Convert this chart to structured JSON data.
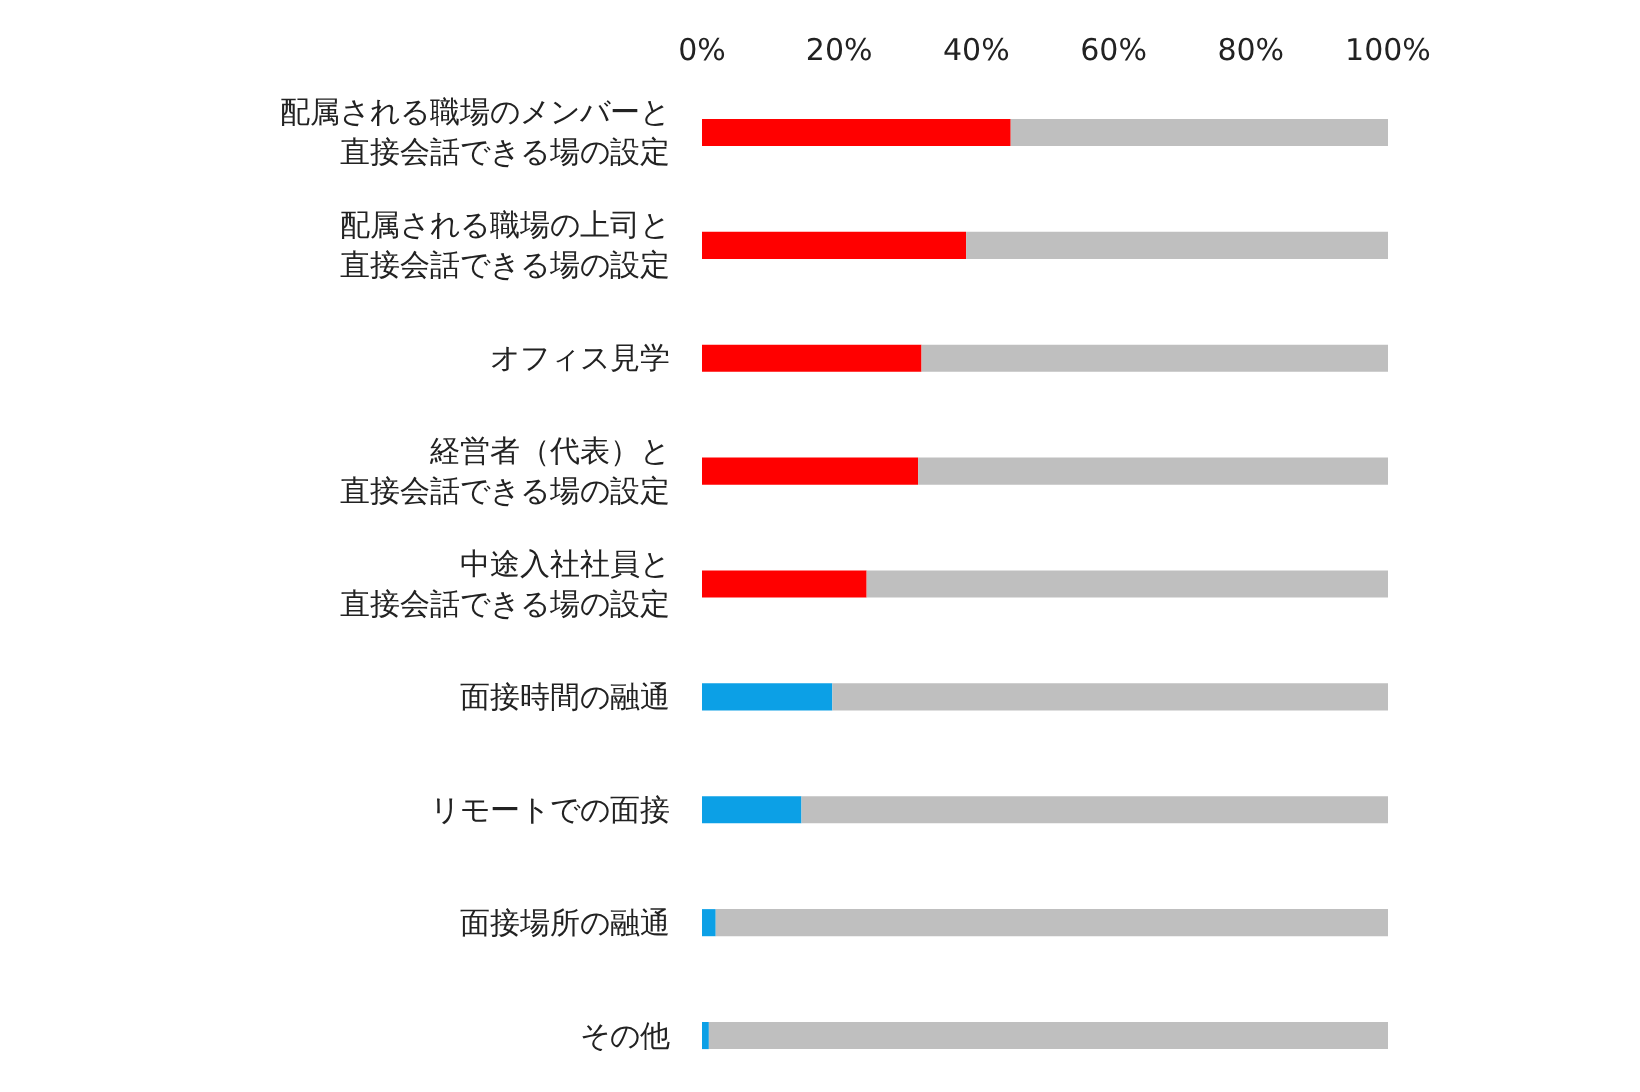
{
  "chart_data": {
    "type": "bar",
    "orientation": "horizontal",
    "stacked": true,
    "categories": [
      "配属される職場のメンバーと直接会話できる場の設定",
      "配属される職場の上司と直接会話できる場の設定",
      "オフィス見学",
      "経営者（代表）と直接会話できる場の設定",
      "中途入社社員と直接会話できる場の設定",
      "面接時間の融通",
      "リモートでの面接",
      "面接場所の融通",
      "その他"
    ],
    "series": [
      {
        "colors": [
          "#ff0000",
          "#ff0000",
          "#ff0000",
          "#ff0000",
          "#ff0000",
          "#0ca0e6",
          "#0ca0e6",
          "#0ca0e6",
          "#0ca0e6"
        ],
        "values": [
          45,
          38.5,
          32,
          31.5,
          24,
          19,
          14.5,
          2,
          1
        ]
      },
      {
        "color": "#bfbfbf",
        "values": [
          55,
          61.5,
          68,
          68.5,
          76,
          81,
          85.5,
          98,
          99
        ]
      }
    ],
    "xlim": [
      0,
      100
    ],
    "xticks": [
      {
        "value": 0,
        "label": "0%"
      },
      {
        "value": 20,
        "label": "20%"
      },
      {
        "value": 40,
        "label": "40%"
      },
      {
        "value": 60,
        "label": "60%"
      },
      {
        "value": 80,
        "label": "80%"
      },
      {
        "value": 100,
        "label": "100%"
      }
    ],
    "grid": false,
    "legend": false
  }
}
